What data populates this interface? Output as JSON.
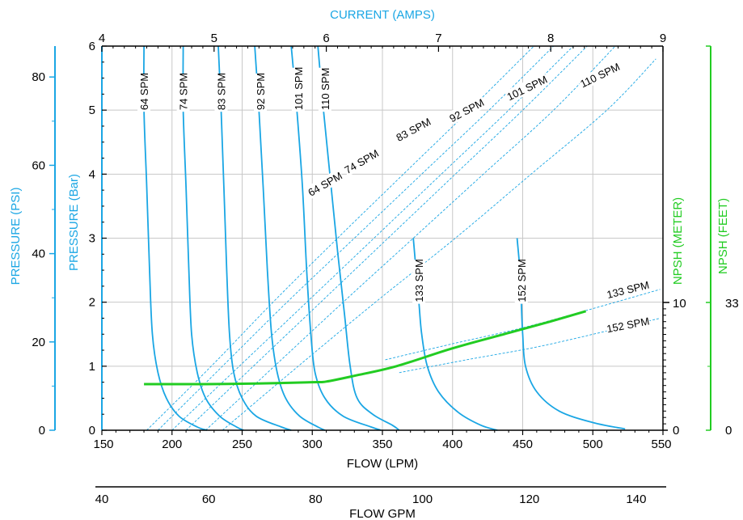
{
  "colors": {
    "blue": "#1aa6e4",
    "green": "#22cc22",
    "axis": "#000000",
    "grid": "#c8c8c8",
    "text": "#000000"
  },
  "chart_data": {
    "type": "line",
    "title": "",
    "grid": true,
    "axes": {
      "flow_lpm": {
        "label": "FLOW (LPM)",
        "range": [
          150,
          550
        ],
        "ticks": [
          "150",
          "200",
          "250",
          "300",
          "350",
          "400",
          "450",
          "500",
          "550"
        ]
      },
      "flow_gpm": {
        "label": "FLOW  GPM",
        "range": [
          40,
          145
        ],
        "ticks": [
          "40",
          "60",
          "80",
          "100",
          "120",
          "140"
        ]
      },
      "current_amps": {
        "label": "CURRENT (AMPS)",
        "range": [
          4,
          9
        ],
        "ticks": [
          "4",
          "5",
          "6",
          "7",
          "8",
          "9"
        ]
      },
      "pressure_bar": {
        "label": "PRESSURE (Bar)",
        "range": [
          0,
          6
        ],
        "ticks": [
          "0",
          "1",
          "2",
          "3",
          "4",
          "5",
          "6"
        ]
      },
      "pressure_psi": {
        "label": "PRESSURE (PSI)",
        "range": [
          0,
          87
        ],
        "ticks": [
          "0",
          "20",
          "40",
          "60",
          "80"
        ]
      },
      "npsh_meter": {
        "label": "NPSH (METER)",
        "ticks": [
          "0",
          "10"
        ]
      },
      "npsh_feet": {
        "label": "NPSH (FEET)",
        "ticks": [
          "0",
          "33"
        ]
      }
    },
    "pressure_flow_series": [
      {
        "name": "64 SPM",
        "label_at": [
          180,
          5.0
        ],
        "points": [
          [
            180,
            6.0
          ],
          [
            180,
            5.0
          ],
          [
            182,
            3.8
          ],
          [
            184,
            2.5
          ],
          [
            186,
            1.5
          ],
          [
            190,
            0.9
          ],
          [
            196,
            0.5
          ],
          [
            205,
            0.22
          ],
          [
            218,
            0.05
          ],
          [
            225,
            0
          ]
        ]
      },
      {
        "name": "74 SPM",
        "label_at": [
          208,
          5.0
        ],
        "points": [
          [
            208,
            6.0
          ],
          [
            208,
            5.0
          ],
          [
            210,
            3.8
          ],
          [
            212,
            2.5
          ],
          [
            214,
            1.5
          ],
          [
            218,
            0.9
          ],
          [
            224,
            0.5
          ],
          [
            234,
            0.22
          ],
          [
            246,
            0.05
          ],
          [
            251,
            0
          ]
        ]
      },
      {
        "name": "83 SPM",
        "label_at": [
          235,
          5.0
        ],
        "points": [
          [
            233,
            6.0
          ],
          [
            235,
            5.0
          ],
          [
            237,
            3.8
          ],
          [
            239,
            2.5
          ],
          [
            241,
            1.5
          ],
          [
            244,
            0.9
          ],
          [
            250,
            0.5
          ],
          [
            260,
            0.22
          ],
          [
            278,
            0.05
          ],
          [
            285,
            0
          ]
        ]
      },
      {
        "name": "92 SPM",
        "label_at": [
          263,
          5.0
        ],
        "points": [
          [
            259,
            6.0
          ],
          [
            262,
            5.0
          ],
          [
            265,
            3.8
          ],
          [
            268,
            2.5
          ],
          [
            271,
            1.5
          ],
          [
            275,
            0.9
          ],
          [
            281,
            0.5
          ],
          [
            291,
            0.22
          ],
          [
            304,
            0.05
          ],
          [
            309,
            0
          ]
        ]
      },
      {
        "name": "101 SPM",
        "label_at": [
          290,
          5.0
        ],
        "points": [
          [
            285,
            6.0
          ],
          [
            289,
            5.0
          ],
          [
            293,
            3.8
          ],
          [
            296,
            2.5
          ],
          [
            299,
            1.5
          ],
          [
            302,
            0.9
          ],
          [
            309,
            0.5
          ],
          [
            322,
            0.22
          ],
          [
            342,
            0.05
          ],
          [
            349,
            0
          ]
        ]
      },
      {
        "name": "110 SPM",
        "label_at": [
          309,
          5.0
        ],
        "points": [
          [
            304,
            6.0
          ],
          [
            308,
            5.0
          ],
          [
            313,
            3.9
          ],
          [
            318,
            2.8
          ],
          [
            323,
            1.8
          ],
          [
            327,
            1.0
          ],
          [
            332,
            0.5
          ],
          [
            343,
            0.25
          ],
          [
            357,
            0.08
          ],
          [
            362,
            0
          ]
        ]
      },
      {
        "name": "133 SPM",
        "label_at": [
          376,
          2.0
        ],
        "points": [
          [
            372,
            3.0
          ],
          [
            374,
            2.5
          ],
          [
            376,
            2.0
          ],
          [
            378,
            1.5
          ],
          [
            382,
            1.0
          ],
          [
            390,
            0.6
          ],
          [
            404,
            0.28
          ],
          [
            420,
            0.08
          ],
          [
            432,
            0
          ]
        ]
      },
      {
        "name": "152 SPM",
        "label_at": [
          449,
          2.0
        ],
        "points": [
          [
            446,
            3.0
          ],
          [
            448,
            2.5
          ],
          [
            449,
            2.0
          ],
          [
            450,
            1.5
          ],
          [
            452,
            1.0
          ],
          [
            460,
            0.6
          ],
          [
            476,
            0.3
          ],
          [
            500,
            0.12
          ],
          [
            523,
            0.02
          ]
        ]
      }
    ],
    "current_flow_series": [
      {
        "name": "64 SPM",
        "label_at": [
          309,
          3.85
        ],
        "points": [
          [
            182,
            0
          ],
          [
            228,
            1.0
          ],
          [
            272,
            2.0
          ],
          [
            318,
            3.0
          ],
          [
            365,
            4.0
          ],
          [
            412,
            5.0
          ],
          [
            458,
            6.0
          ]
        ]
      },
      {
        "name": "74 SPM",
        "label_at": [
          335,
          4.2
        ],
        "points": [
          [
            190,
            0
          ],
          [
            236,
            1.0
          ],
          [
            282,
            2.0
          ],
          [
            330,
            3.0
          ],
          [
            378,
            4.0
          ],
          [
            426,
            5.0
          ],
          [
            472,
            6.0
          ]
        ]
      },
      {
        "name": "83 SPM",
        "label_at": [
          372,
          4.7
        ],
        "points": [
          [
            200,
            0
          ],
          [
            248,
            1.0
          ],
          [
            296,
            2.0
          ],
          [
            344,
            3.0
          ],
          [
            392,
            4.0
          ],
          [
            440,
            5.0
          ],
          [
            486,
            6.0
          ]
        ]
      },
      {
        "name": "92 SPM",
        "label_at": [
          410,
          5.0
        ],
        "points": [
          [
            210,
            0
          ],
          [
            258,
            1.0
          ],
          [
            306,
            2.0
          ],
          [
            354,
            3.0
          ],
          [
            402,
            4.0
          ],
          [
            450,
            5.0
          ],
          [
            496,
            6.0
          ]
        ]
      },
      {
        "name": "101 SPM",
        "label_at": [
          453,
          5.35
        ],
        "points": [
          [
            224,
            0
          ],
          [
            273,
            1.0
          ],
          [
            322,
            2.0
          ],
          [
            372,
            3.0
          ],
          [
            422,
            4.0
          ],
          [
            472,
            5.0
          ],
          [
            516,
            6.0
          ]
        ]
      },
      {
        "name": "110 SPM",
        "label_at": [
          505,
          5.55
        ],
        "points": [
          [
            236,
            0
          ],
          [
            290,
            1.0
          ],
          [
            345,
            2.0
          ],
          [
            402,
            3.0
          ],
          [
            456,
            4.0
          ],
          [
            510,
            5.0
          ],
          [
            545,
            5.8
          ]
        ]
      },
      {
        "name": "133 SPM",
        "label_at": [
          525,
          2.2
        ],
        "points": [
          [
            352,
            1.1
          ],
          [
            400,
            1.35
          ],
          [
            450,
            1.6
          ],
          [
            500,
            1.9
          ],
          [
            548,
            2.2
          ]
        ]
      },
      {
        "name": "152 SPM",
        "label_at": [
          525,
          1.65
        ],
        "points": [
          [
            362,
            0.9
          ],
          [
            410,
            1.1
          ],
          [
            460,
            1.3
          ],
          [
            510,
            1.55
          ],
          [
            548,
            1.75
          ]
        ]
      }
    ],
    "npsh_curve": {
      "name": "NPSH",
      "points": [
        [
          180,
          0.72
        ],
        [
          220,
          0.72
        ],
        [
          260,
          0.73
        ],
        [
          300,
          0.75
        ],
        [
          310,
          0.76
        ],
        [
          330,
          0.85
        ],
        [
          360,
          1.0
        ],
        [
          400,
          1.28
        ],
        [
          440,
          1.52
        ],
        [
          470,
          1.7
        ],
        [
          495,
          1.86
        ]
      ]
    }
  }
}
